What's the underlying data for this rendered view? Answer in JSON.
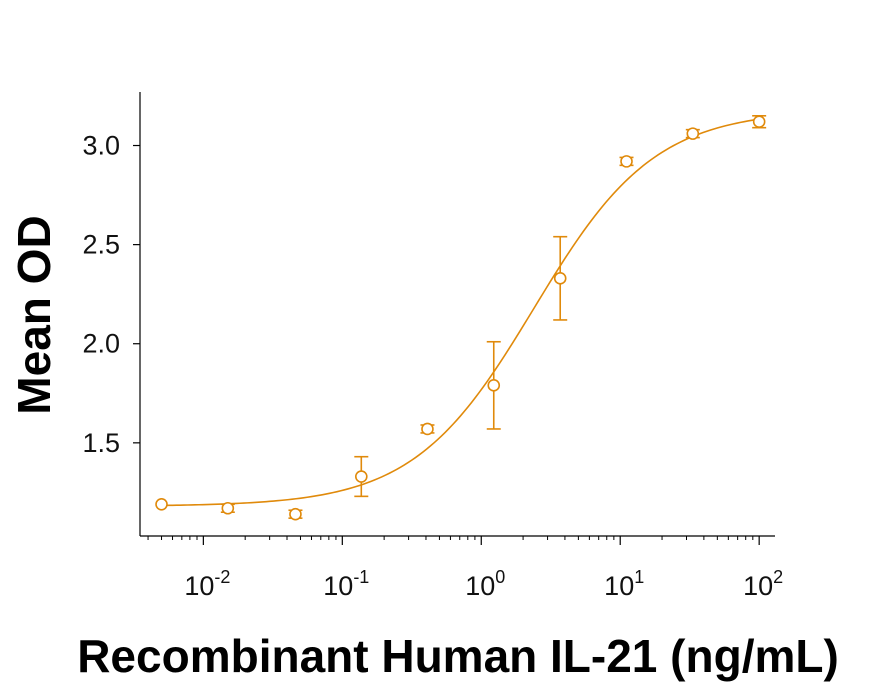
{
  "chart_data": {
    "type": "scatter",
    "title": "",
    "xlabel": "Recombinant Human IL-21 (ng/mL)",
    "ylabel": "Mean OD",
    "xscale": "log",
    "xlim": [
      0.0035,
      130
    ],
    "ylim": [
      1.03,
      3.27
    ],
    "x_ticks": [
      {
        "value": 0.01,
        "base": "10",
        "exp": "-2"
      },
      {
        "value": 0.1,
        "base": "10",
        "exp": "-1"
      },
      {
        "value": 1,
        "base": "10",
        "exp": "0"
      },
      {
        "value": 10,
        "base": "10",
        "exp": "1"
      },
      {
        "value": 100,
        "base": "10",
        "exp": "2"
      }
    ],
    "y_ticks": [
      {
        "value": 1.5,
        "label": "1.5"
      },
      {
        "value": 2.0,
        "label": "2.0"
      },
      {
        "value": 2.5,
        "label": "2.5"
      },
      {
        "value": 3.0,
        "label": "3.0"
      }
    ],
    "grid": false,
    "legend": false,
    "series": [
      {
        "color": "#E08A0B",
        "marker": "open-circle",
        "x": [
          0.005,
          0.015,
          0.046,
          0.137,
          0.41,
          1.23,
          3.7,
          11.1,
          33.3,
          100
        ],
        "y": [
          1.19,
          1.17,
          1.14,
          1.33,
          1.57,
          1.79,
          2.33,
          2.92,
          3.06,
          3.12
        ],
        "error": [
          0.0,
          0.02,
          0.02,
          0.1,
          0.02,
          0.22,
          0.21,
          0.02,
          0.02,
          0.03
        ]
      }
    ],
    "fit": {
      "model": "4PL",
      "bottom": 1.18,
      "top": 3.18,
      "ec50": 2.4,
      "hill": 1.0,
      "color": "#E08A0B"
    }
  }
}
